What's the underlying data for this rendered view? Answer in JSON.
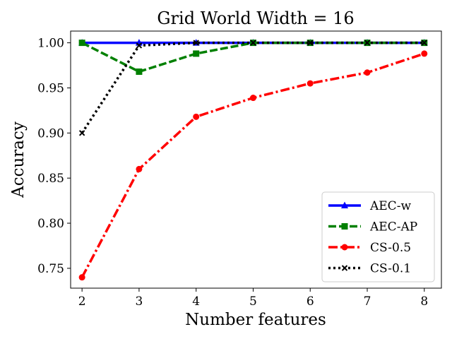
{
  "chart_data": {
    "type": "line",
    "title": "Grid World Width = 16",
    "xlabel": "Number features",
    "ylabel": "Accuracy",
    "x": [
      2,
      3,
      4,
      5,
      6,
      7,
      8
    ],
    "xlim": [
      1.8,
      8.3
    ],
    "ylim": [
      0.728,
      1.013
    ],
    "xticks": [
      2,
      3,
      4,
      5,
      6,
      7,
      8
    ],
    "yticks": [
      0.75,
      0.8,
      0.85,
      0.9,
      0.95,
      1.0
    ],
    "ytick_labels": [
      "0.75",
      "0.80",
      "0.85",
      "0.90",
      "0.95",
      "1.00"
    ],
    "grid": false,
    "legend_position": "lower-right",
    "series": [
      {
        "name": "AEC-w",
        "color": "#0000ff",
        "dash": "solid",
        "marker": "triangle",
        "values": [
          1.0,
          1.0,
          1.0,
          1.0,
          1.0,
          1.0,
          1.0
        ]
      },
      {
        "name": "AEC-AP",
        "color": "#008000",
        "dash": "dashed",
        "marker": "square",
        "values": [
          1.0,
          0.968,
          0.988,
          1.0,
          1.0,
          1.0,
          1.0
        ]
      },
      {
        "name": "CS-0.5",
        "color": "#ff0000",
        "dash": "dashdot",
        "marker": "circle",
        "values": [
          0.74,
          0.86,
          0.918,
          0.939,
          0.955,
          0.967,
          0.988
        ]
      },
      {
        "name": "CS-0.1",
        "color": "#000000",
        "dash": "dotted",
        "marker": "x",
        "values": [
          0.9,
          0.997,
          1.0,
          1.0,
          1.0,
          1.0,
          1.0
        ]
      }
    ]
  }
}
